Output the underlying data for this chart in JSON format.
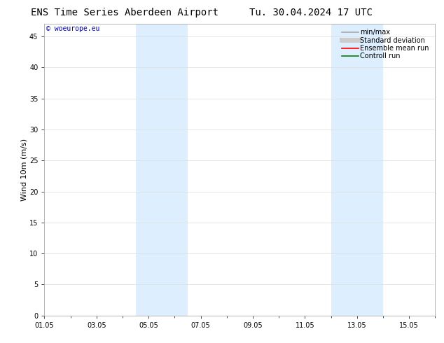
{
  "title_left": "ENS Time Series Aberdeen Airport",
  "title_right": "Tu. 30.04.2024 17 UTC",
  "ylabel": "Wind 10m (m/s)",
  "watermark": "© woeurope.eu",
  "ylim": [
    0,
    47
  ],
  "yticks": [
    0,
    5,
    10,
    15,
    20,
    25,
    30,
    35,
    40,
    45
  ],
  "xlim": [
    0,
    15
  ],
  "xtick_labels": [
    "01.05",
    "03.05",
    "05.05",
    "07.05",
    "09.05",
    "11.05",
    "13.05",
    "15.05"
  ],
  "xtick_positions": [
    0,
    2,
    4,
    6,
    8,
    10,
    12,
    14
  ],
  "shaded_bands": [
    {
      "start": 3.5,
      "end": 5.5
    },
    {
      "start": 11.0,
      "end": 13.0
    }
  ],
  "band_color": "#ddeeff",
  "legend_items": [
    {
      "label": "min/max",
      "color": "#aaaaaa",
      "lw": 1.2
    },
    {
      "label": "Standard deviation",
      "color": "#cccccc",
      "lw": 5
    },
    {
      "label": "Ensemble mean run",
      "color": "#ff0000",
      "lw": 1.2
    },
    {
      "label": "Controll run",
      "color": "#008000",
      "lw": 1.2
    }
  ],
  "background_color": "#ffffff",
  "plot_bg_color": "#ffffff",
  "grid_color": "#dddddd",
  "spine_color": "#aaaaaa",
  "title_fontsize": 10,
  "axis_fontsize": 8,
  "tick_fontsize": 7,
  "watermark_color": "#0000cc",
  "watermark_fontsize": 7,
  "legend_fontsize": 7
}
